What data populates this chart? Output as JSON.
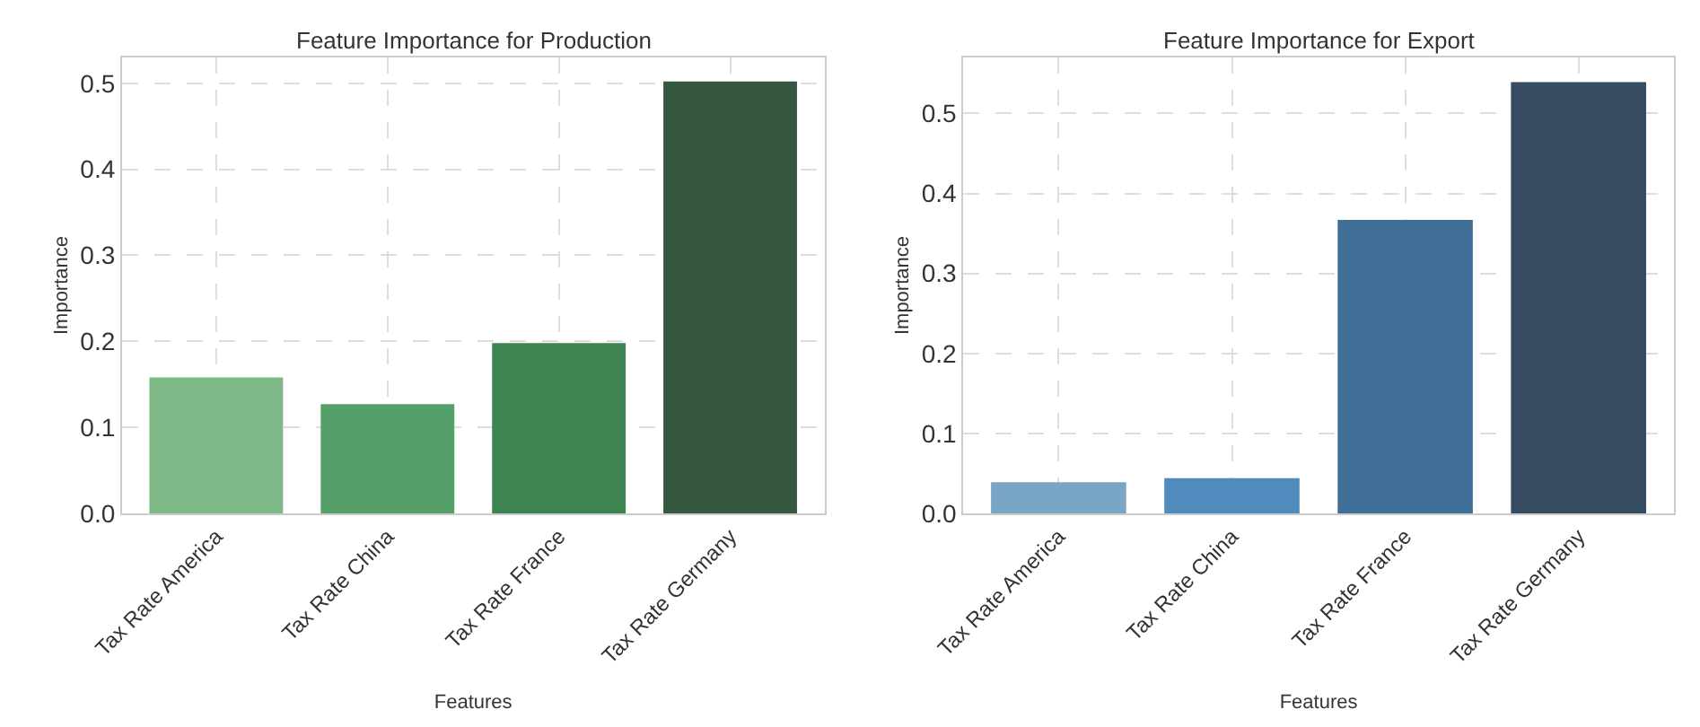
{
  "chart_data": [
    {
      "type": "bar",
      "title": "Feature Importance for Production",
      "xlabel": "Features",
      "ylabel": "Importance",
      "categories": [
        "Tax Rate America",
        "Tax Rate China",
        "Tax Rate France",
        "Tax Rate Germany"
      ],
      "values": [
        0.158,
        0.127,
        0.198,
        0.502
      ],
      "colors": [
        "#7fb987",
        "#55a068",
        "#3e8450",
        "#375840"
      ],
      "ylim": [
        0,
        0.53
      ],
      "yticks": [
        {
          "value": 0,
          "label": "0.0"
        },
        0.1,
        0.2,
        0.3,
        0.4,
        0.5
      ],
      "grid": true
    },
    {
      "type": "bar",
      "title": "Feature Importance for Export",
      "xlabel": "Features",
      "ylabel": "Importance",
      "categories": [
        "Tax Rate America",
        "Tax Rate China",
        "Tax Rate France",
        "Tax Rate Germany"
      ],
      "values": [
        0.039,
        0.044,
        0.367,
        0.539
      ],
      "colors": [
        "#7aa6c6",
        "#4f8bbd",
        "#3f6f96",
        "#354c61"
      ],
      "ylim": [
        0,
        0.57
      ],
      "yticks": [
        {
          "value": 0,
          "label": "0.0"
        },
        0.1,
        0.2,
        0.3,
        0.4,
        0.5
      ],
      "grid": true
    }
  ]
}
